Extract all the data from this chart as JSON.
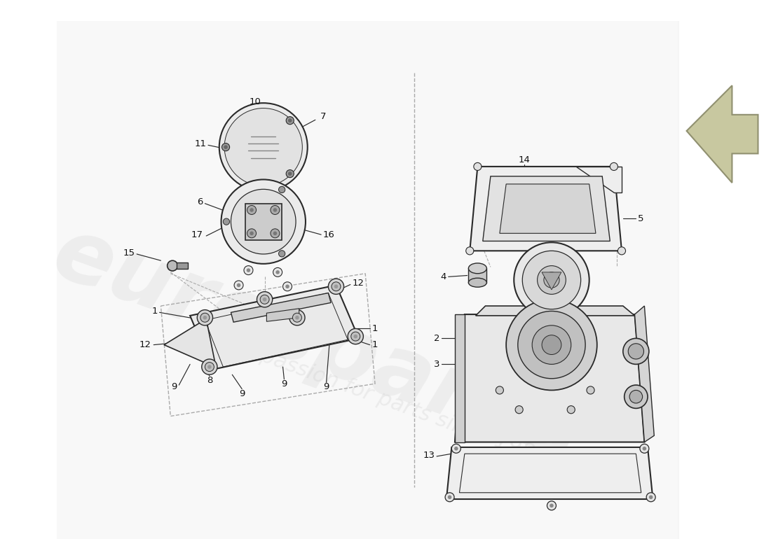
{
  "bg_color": "#ffffff",
  "line_color": "#2a2a2a",
  "dashed_color": "#aaaaaa",
  "part_gray_light": "#f0f0f0",
  "part_gray_mid": "#d8d8d8",
  "part_gray_dark": "#b8b8b8",
  "watermark_color": "#c0c0c0",
  "arrow_fill": "#c8c8a0",
  "arrow_edge": "#909070"
}
